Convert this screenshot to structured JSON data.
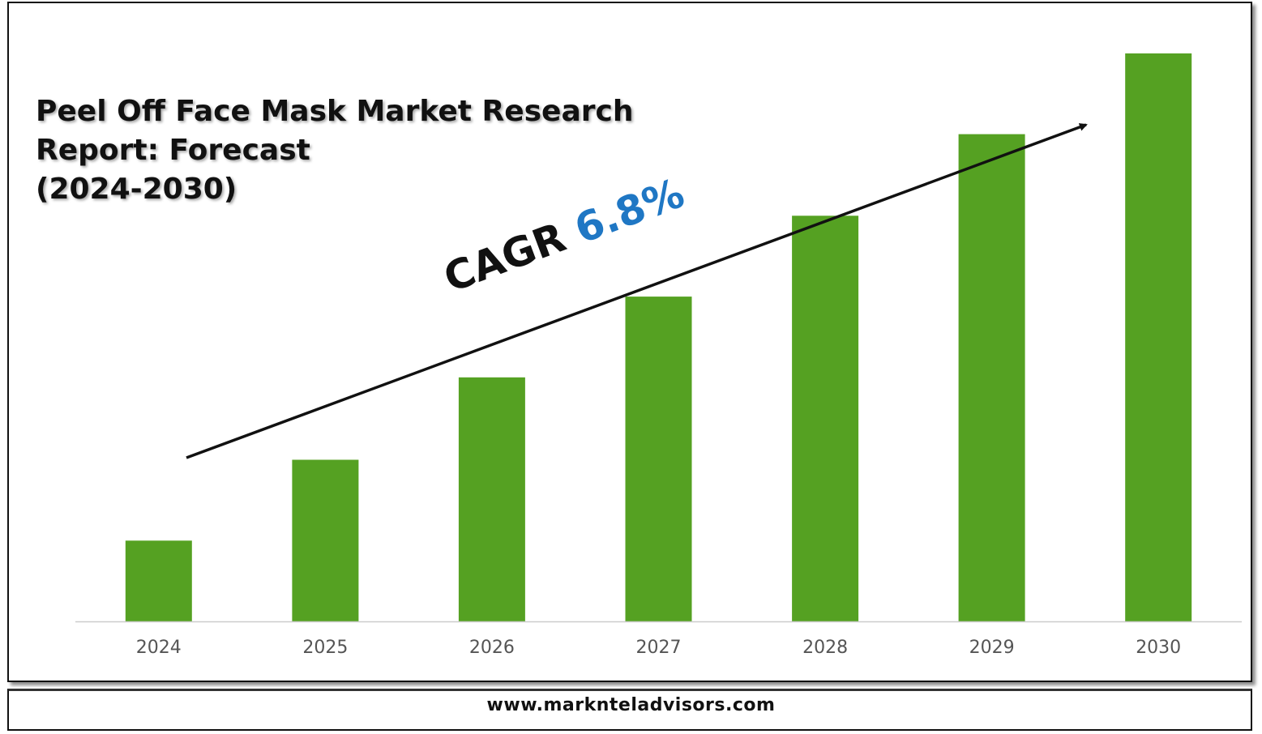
{
  "title_lines": [
    "Peel Off Face Mask Market Research",
    "Report: Forecast",
    "(2024-2030)"
  ],
  "cagr": {
    "label": "CAGR",
    "value": "6.8%"
  },
  "footer": {
    "url": "www.marknteladvisors.com"
  },
  "colors": {
    "bar": "#55a122",
    "cagr_value": "#1f77c4",
    "axis": "#cccccc",
    "tick_label": "#555555"
  },
  "chart_data": {
    "type": "bar",
    "title": "Peel Off Face Mask Market Research Report: Forecast (2024-2030)",
    "categories": [
      "2024",
      "2025",
      "2026",
      "2027",
      "2028",
      "2029",
      "2030"
    ],
    "values": [
      1.0,
      2.0,
      3.02,
      4.02,
      5.02,
      6.03,
      7.03
    ],
    "ylim": [
      0,
      7.5
    ],
    "xlabel": "",
    "ylabel": "",
    "grid": false,
    "legend": "none",
    "annotations": [
      "CAGR 6.8%"
    ]
  }
}
